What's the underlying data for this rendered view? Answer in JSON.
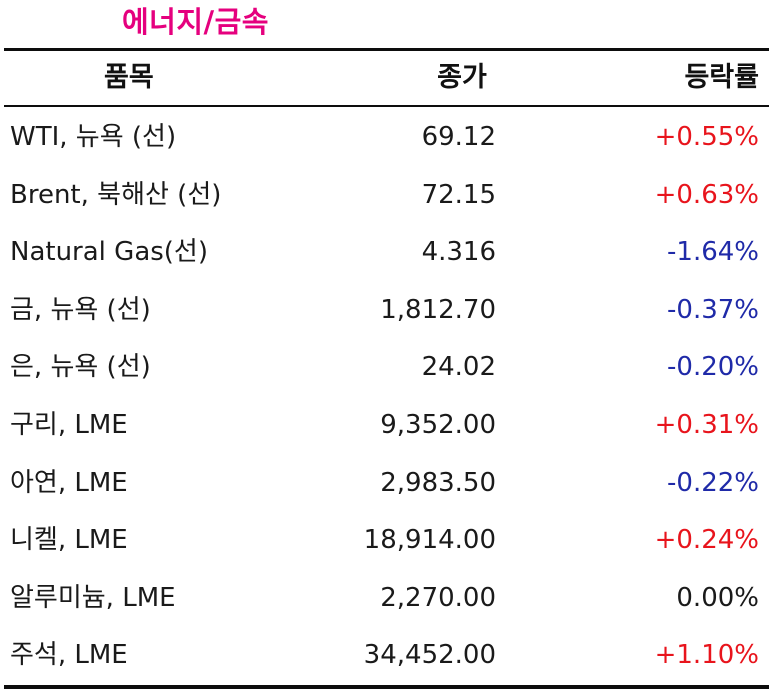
{
  "title": "에너지/금속",
  "headers": {
    "name": "품목",
    "price": "종가",
    "change": "등락률"
  },
  "colors": {
    "title": "#e5007e",
    "up": "#e8141c",
    "down": "#1f2aa8",
    "flat": "#1a1a1a"
  },
  "rows": [
    {
      "name": "WTI, 뉴욕 (선)",
      "price": "69.12",
      "change": "+0.55%",
      "dir": "up"
    },
    {
      "name": "Brent, 북해산 (선)",
      "price": "72.15",
      "change": "+0.63%",
      "dir": "up"
    },
    {
      "name": "Natural Gas(선)",
      "price": "4.316",
      "change": "-1.64%",
      "dir": "down"
    },
    {
      "name": "금, 뉴욕  (선)",
      "price": "1,812.70",
      "change": "-0.37%",
      "dir": "down"
    },
    {
      "name": "은, 뉴욕  (선)",
      "price": "24.02",
      "change": "-0.20%",
      "dir": "down"
    },
    {
      "name": "구리, LME",
      "price": "9,352.00",
      "change": "+0.31%",
      "dir": "up"
    },
    {
      "name": "아연, LME",
      "price": "2,983.50",
      "change": "-0.22%",
      "dir": "down"
    },
    {
      "name": "니켈, LME",
      "price": "18,914.00",
      "change": "+0.24%",
      "dir": "up"
    },
    {
      "name": "알루미늄, LME",
      "price": "2,270.00",
      "change": "0.00%",
      "dir": "flat"
    },
    {
      "name": "주석, LME",
      "price": "34,452.00",
      "change": "+1.10%",
      "dir": "up"
    }
  ]
}
